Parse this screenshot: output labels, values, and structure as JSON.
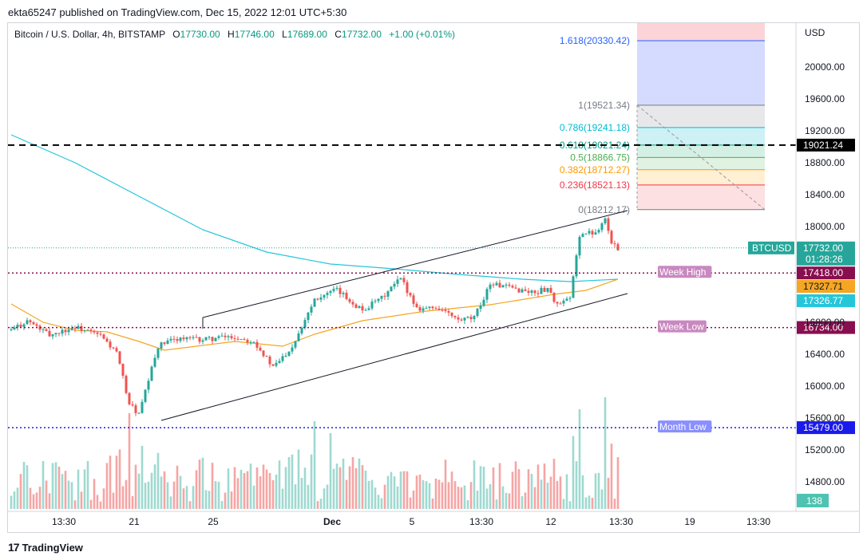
{
  "header": {
    "publisher": "ekta65247 published on TradingView.com, Dec 15, 2022 12:01 UTC+5:30"
  },
  "legend": {
    "symbol": "Bitcoin / U.S. Dollar, 4h, BITSTAMP",
    "open_label": "O",
    "open": "17730.00",
    "high_label": "H",
    "high": "17746.00",
    "low_label": "L",
    "low": "17689.00",
    "close_label": "C",
    "close": "17732.00",
    "change": "+1.00 (+0.01%)"
  },
  "currency": "USD",
  "footer": {
    "brand": "TradingView",
    "logo": "tradingview-logo-icon"
  },
  "colors": {
    "up": "#26a69a",
    "down": "#ef5350",
    "ma_fast": "#f5a623",
    "ma_slow": "#26c6da",
    "week": "#880e4f",
    "month": "#1a1aeb"
  },
  "chart_data": {
    "type": "candlestick",
    "title": "Bitcoin / U.S. Dollar, 4h, BITSTAMP",
    "y_range": [
      14500,
      20650
    ],
    "y_ticks": [
      "20000.00",
      "19600.00",
      "19200.00",
      "18800.00",
      "18400.00",
      "18000.00",
      "16800.00",
      "16400.00",
      "16000.00",
      "15600.00",
      "15200.00",
      "14800.00"
    ],
    "x_ticks": [
      "13:30",
      "21",
      "25",
      "Dec",
      "5",
      "13:30",
      "12",
      "13:30",
      "19",
      "13:30"
    ],
    "anchors": [
      {
        "t": 0,
        "p": 16700
      },
      {
        "t": 5,
        "p": 16820
      },
      {
        "t": 12,
        "p": 16640
      },
      {
        "t": 20,
        "p": 16740
      },
      {
        "t": 28,
        "p": 16630
      },
      {
        "t": 33,
        "p": 16420
      },
      {
        "t": 37,
        "p": 15780
      },
      {
        "t": 40,
        "p": 15640
      },
      {
        "t": 46,
        "p": 16500
      },
      {
        "t": 52,
        "p": 16600
      },
      {
        "t": 60,
        "p": 16580
      },
      {
        "t": 68,
        "p": 16620
      },
      {
        "t": 76,
        "p": 16570
      },
      {
        "t": 82,
        "p": 16230
      },
      {
        "t": 88,
        "p": 16500
      },
      {
        "t": 95,
        "p": 17100
      },
      {
        "t": 102,
        "p": 17200
      },
      {
        "t": 110,
        "p": 16950
      },
      {
        "t": 116,
        "p": 17100
      },
      {
        "t": 122,
        "p": 17350
      },
      {
        "t": 127,
        "p": 16980
      },
      {
        "t": 134,
        "p": 16980
      },
      {
        "t": 140,
        "p": 16820
      },
      {
        "t": 145,
        "p": 16850
      },
      {
        "t": 150,
        "p": 17290
      },
      {
        "t": 156,
        "p": 17230
      },
      {
        "t": 164,
        "p": 17170
      },
      {
        "t": 168,
        "p": 17230
      },
      {
        "t": 171,
        "p": 17010
      },
      {
        "t": 175,
        "p": 17090
      },
      {
        "t": 178,
        "p": 17900
      },
      {
        "t": 183,
        "p": 17930
      },
      {
        "t": 186,
        "p": 18110
      },
      {
        "t": 188,
        "p": 17780
      },
      {
        "t": 190,
        "p": 17732
      }
    ],
    "volume_spikes": [
      {
        "t": 37,
        "v": 120
      },
      {
        "t": 95,
        "v": 110
      },
      {
        "t": 100,
        "v": 95
      },
      {
        "t": 178,
        "v": 125
      },
      {
        "t": 186,
        "v": 140
      }
    ],
    "current_price": {
      "label": "BTCUSD",
      "value": "17732.00",
      "countdown": "01:28:26"
    },
    "moving_averages": [
      {
        "name": "ma_slow",
        "points": [
          {
            "t": 0,
            "p": 19150
          },
          {
            "t": 20,
            "p": 18800
          },
          {
            "t": 40,
            "p": 18380
          },
          {
            "t": 60,
            "p": 17960
          },
          {
            "t": 80,
            "p": 17680
          },
          {
            "t": 100,
            "p": 17530
          },
          {
            "t": 120,
            "p": 17470
          },
          {
            "t": 140,
            "p": 17400
          },
          {
            "t": 160,
            "p": 17340
          },
          {
            "t": 175,
            "p": 17310
          },
          {
            "t": 190,
            "p": 17340
          }
        ],
        "label": "17326.77"
      },
      {
        "name": "ma_fast",
        "points": [
          {
            "t": 0,
            "p": 17030
          },
          {
            "t": 10,
            "p": 16800
          },
          {
            "t": 20,
            "p": 16700
          },
          {
            "t": 30,
            "p": 16680
          },
          {
            "t": 40,
            "p": 16560
          },
          {
            "t": 48,
            "p": 16450
          },
          {
            "t": 58,
            "p": 16500
          },
          {
            "t": 70,
            "p": 16560
          },
          {
            "t": 85,
            "p": 16500
          },
          {
            "t": 95,
            "p": 16650
          },
          {
            "t": 110,
            "p": 16820
          },
          {
            "t": 130,
            "p": 16940
          },
          {
            "t": 150,
            "p": 17020
          },
          {
            "t": 170,
            "p": 17150
          },
          {
            "t": 180,
            "p": 17200
          },
          {
            "t": 190,
            "p": 17340
          }
        ],
        "label": "17327.71"
      }
    ],
    "levels": [
      {
        "name": "Week High",
        "value": 17418,
        "label": "17418.00",
        "style": "week"
      },
      {
        "name": "Week Low",
        "value": 16734,
        "label": "16734.00",
        "style": "week"
      },
      {
        "name": "Month Low",
        "value": 15479,
        "label": "15479.00",
        "style": "month"
      },
      {
        "name": "",
        "value": 19021.24,
        "label": "19021.24",
        "style": "black"
      }
    ],
    "channel": {
      "upper": [
        {
          "t": 60,
          "p": 16860
        },
        {
          "t": 193,
          "p": 18200
        }
      ],
      "lower": [
        {
          "t": 47,
          "p": 15570
        },
        {
          "t": 193,
          "p": 17160
        }
      ]
    },
    "fib": [
      {
        "ratio": "1.618",
        "price": 20330.42,
        "label": "1.618(20330.42)",
        "color": "#2962ff",
        "fill": "#d4dbff"
      },
      {
        "ratio": "1",
        "price": 19521.34,
        "label": "1(19521.34)",
        "color": "#787b86",
        "fill": "#e8e8ea"
      },
      {
        "ratio": "0.786",
        "price": 19241.18,
        "label": "0.786(19241.18)",
        "color": "#00bcd4",
        "fill": "#cdf1f4"
      },
      {
        "ratio": "0.618",
        "price": 19021.24,
        "label": "0.618(19021.24)",
        "color": "#089981",
        "fill": "#d4f0e4"
      },
      {
        "ratio": "0.5",
        "price": 18866.75,
        "label": "0.5(18866.75)",
        "color": "#4caf50",
        "fill": "#e0f2e1"
      },
      {
        "ratio": "0.382",
        "price": 18712.27,
        "label": "0.382(18712.27)",
        "color": "#ff9800",
        "fill": "#fff0d4"
      },
      {
        "ratio": "0.236",
        "price": 18521.13,
        "label": "0.236(18521.13)",
        "color": "#f23645",
        "fill": "#fde0e2"
      },
      {
        "ratio": "0",
        "price": 18212.17,
        "label": "0(18212.17)",
        "color": "#787b86",
        "fill": "#ffffff"
      }
    ],
    "fib_top_fill": {
      "price_top": 20650,
      "color": "#fcd4d8"
    },
    "volume_label": "138"
  }
}
